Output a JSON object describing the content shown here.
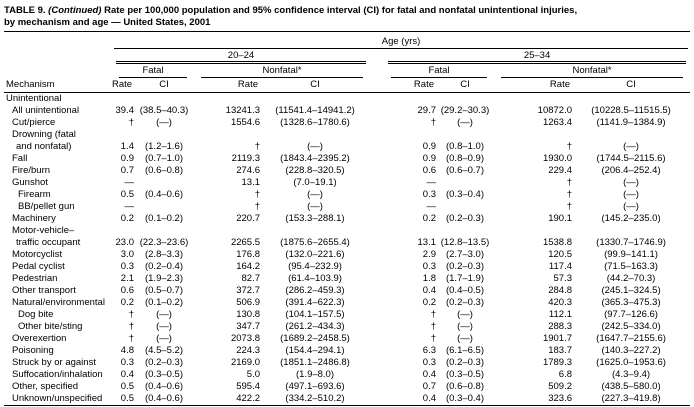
{
  "title": {
    "number": "TABLE 9.",
    "continued": "(Continued)",
    "line1_rest": "Rate per 100,000 population and 95% confidence interval (CI) for fatal and nonfatal unintentional injuries,",
    "line2": "by mechanism and age — United States, 2001"
  },
  "header": {
    "age_label": "Age (yrs)",
    "mechanism_label": "Mechanism",
    "group1": "20–24",
    "group2": "25–34",
    "fatal_label": "Fatal",
    "nonfatal_label": "Nonfatal*",
    "rate_label": "Rate",
    "ci_label": "CI"
  },
  "rows": [
    {
      "lines": [
        "Unintentional"
      ],
      "indent": 0,
      "values": [
        "",
        "",
        "",
        "",
        "",
        "",
        "",
        ""
      ]
    },
    {
      "lines": [
        "All unintentional"
      ],
      "indent": 1,
      "values": [
        "39.4",
        "(38.5–40.3)",
        "13241.3",
        "(11541.4–14941.2)",
        "29.7",
        "(29.2–30.3)",
        "10872.0",
        "(10228.5–11515.5)"
      ]
    },
    {
      "lines": [
        "Cut/pierce"
      ],
      "indent": 1,
      "values": [
        "†",
        "(—)",
        "1554.6",
        "(1328.6–1780.6)",
        "†",
        "(—)",
        "1263.4",
        "(1141.9–1384.9)"
      ]
    },
    {
      "lines": [
        "Drowning (fatal",
        "and nonfatal)"
      ],
      "indent": 1,
      "values": [
        "1.4",
        "(1.2–1.6)",
        "†",
        "(—)",
        "0.9",
        "(0.8–1.0)",
        "†",
        "(—)"
      ]
    },
    {
      "lines": [
        "Fall"
      ],
      "indent": 1,
      "values": [
        "0.9",
        "(0.7–1.0)",
        "2119.3",
        "(1843.4–2395.2)",
        "0.9",
        "(0.8–0.9)",
        "1930.0",
        "(1744.5–2115.6)"
      ]
    },
    {
      "lines": [
        "Fire/burn"
      ],
      "indent": 1,
      "values": [
        "0.7",
        "(0.6–0.8)",
        "274.6",
        "(228.8–320.5)",
        "0.6",
        "(0.6–0.7)",
        "229.4",
        "(206.4–252.4)"
      ]
    },
    {
      "lines": [
        "Gunshot"
      ],
      "indent": 1,
      "values": [
        "—",
        "",
        "13.1",
        "(7.0–19.1)",
        "—",
        "",
        "†",
        "(—)"
      ]
    },
    {
      "lines": [
        "Firearm"
      ],
      "indent": 2,
      "values": [
        "0.5",
        "(0.4–0.6)",
        "†",
        "(—)",
        "0.3",
        "(0.3–0.4)",
        "†",
        "(—)"
      ]
    },
    {
      "lines": [
        "BB/pellet gun"
      ],
      "indent": 2,
      "values": [
        "—",
        "",
        "†",
        "(—)",
        "—",
        "",
        "†",
        "(—)"
      ]
    },
    {
      "lines": [
        "Machinery"
      ],
      "indent": 1,
      "values": [
        "0.2",
        "(0.1–0.2)",
        "220.7",
        "(153.3–288.1)",
        "0.2",
        "(0.2–0.3)",
        "190.1",
        "(145.2–235.0)"
      ]
    },
    {
      "lines": [
        "Motor-vehicle–",
        "traffic occupant"
      ],
      "indent": 1,
      "values": [
        "23.0",
        "(22.3–23.6)",
        "2265.5",
        "(1875.6–2655.4)",
        "13.1",
        "(12.8–13.5)",
        "1538.8",
        "(1330.7–1746.9)"
      ]
    },
    {
      "lines": [
        "Motorcyclist"
      ],
      "indent": 1,
      "values": [
        "3.0",
        "(2.8–3.3)",
        "176.8",
        "(132.0–221.6)",
        "2.9",
        "(2.7–3.0)",
        "120.5",
        "(99.9–141.1)"
      ]
    },
    {
      "lines": [
        "Pedal cyclist"
      ],
      "indent": 1,
      "values": [
        "0.3",
        "(0.2–0.4)",
        "164.2",
        "(95.4–232.9)",
        "0.3",
        "(0.2–0.3)",
        "117.4",
        "(71.5–163.3)"
      ]
    },
    {
      "lines": [
        "Pedestrian"
      ],
      "indent": 1,
      "values": [
        "2.1",
        "(1.9–2.3)",
        "82.7",
        "(61.4–103.9)",
        "1.8",
        "(1.7–1.9)",
        "57.3",
        "(44.2–70.3)"
      ]
    },
    {
      "lines": [
        "Other transport"
      ],
      "indent": 1,
      "values": [
        "0.6",
        "(0.5–0.7)",
        "372.7",
        "(286.2–459.3)",
        "0.4",
        "(0.4–0.5)",
        "284.8",
        "(245.1–324.5)"
      ]
    },
    {
      "lines": [
        "Natural/environmental"
      ],
      "indent": 1,
      "values": [
        "0.2",
        "(0.1–0.2)",
        "506.9",
        "(391.4–622.3)",
        "0.2",
        "(0.2–0.3)",
        "420.3",
        "(365.3–475.3)"
      ]
    },
    {
      "lines": [
        "Dog bite"
      ],
      "indent": 2,
      "values": [
        "†",
        "(—)",
        "130.8",
        "(104.1–157.5)",
        "†",
        "(—)",
        "112.1",
        "(97.7–126.6)"
      ]
    },
    {
      "lines": [
        "Other bite/sting"
      ],
      "indent": 2,
      "values": [
        "†",
        "(—)",
        "347.7",
        "(261.2–434.3)",
        "†",
        "(—)",
        "288.3",
        "(242.5–334.0)"
      ]
    },
    {
      "lines": [
        "Overexertion"
      ],
      "indent": 1,
      "values": [
        "†",
        "(—)",
        "2073.8",
        "(1689.2–2458.5)",
        "†",
        "(—)",
        "1901.7",
        "(1647.7–2155.6)"
      ]
    },
    {
      "lines": [
        "Poisoning"
      ],
      "indent": 1,
      "values": [
        "4.8",
        "(4.5–5.2)",
        "224.3",
        "(154.4–294.1)",
        "6.3",
        "(6.1–6.5)",
        "183.7",
        "(140.3–227.2)"
      ]
    },
    {
      "lines": [
        "Struck by or against"
      ],
      "indent": 1,
      "values": [
        "0.3",
        "(0.2–0.3)",
        "2169.0",
        "(1851.1–2486.8)",
        "0.3",
        "(0.2–0.3)",
        "1789.3",
        "(1625.0–1953.6)"
      ]
    },
    {
      "lines": [
        "Suffocation/inhalation"
      ],
      "indent": 1,
      "values": [
        "0.4",
        "(0.3–0.5)",
        "5.0",
        "(1.9–8.0)",
        "0.4",
        "(0.3–0.5)",
        "6.8",
        "(4.3–9.4)"
      ]
    },
    {
      "lines": [
        "Other, specified"
      ],
      "indent": 1,
      "values": [
        "0.5",
        "(0.4–0.6)",
        "595.4",
        "(497.1–693.6)",
        "0.7",
        "(0.6–0.8)",
        "509.2",
        "(438.5–580.0)"
      ]
    },
    {
      "lines": [
        "Unknown/unspecified"
      ],
      "indent": 1,
      "values": [
        "0.5",
        "(0.4–0.6)",
        "422.2",
        "(334.2–510.2)",
        "0.4",
        "(0.3–0.4)",
        "323.6",
        "(227.3–419.8)"
      ]
    }
  ]
}
